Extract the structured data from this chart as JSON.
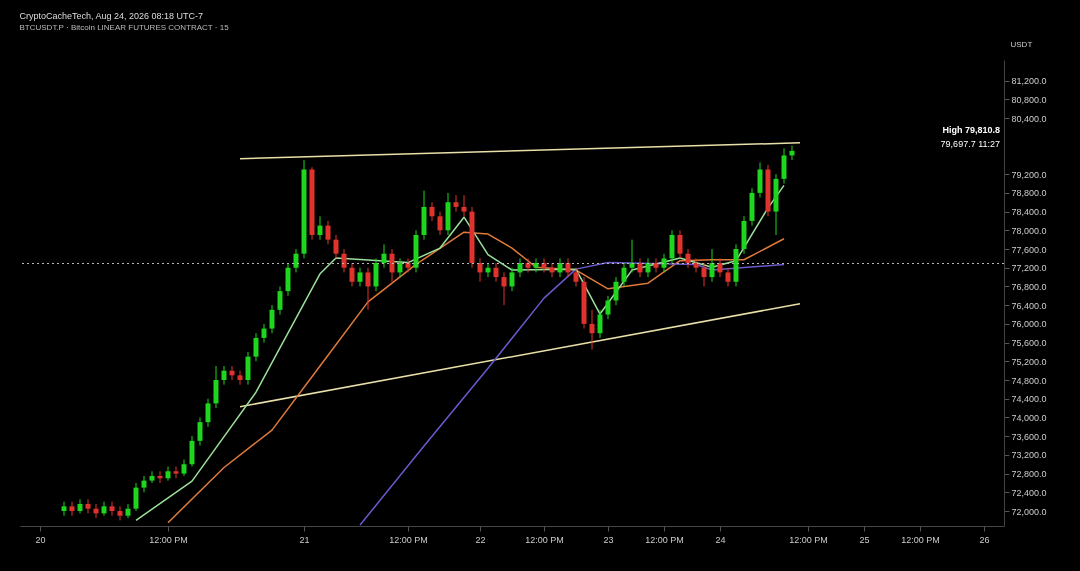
{
  "chart_data": {
    "type": "candlestick",
    "title": "CryptoCacheTech, Aug 24, 2026 08:18 UTC-7",
    "subtitle": "BTCUSDT.P · Bitcoin LINEAR FUTURES CONTRACT · 15",
    "ylabel": "USDT",
    "categories": [
      null,
      null,
      "20",
      null,
      null,
      null,
      null,
      null,
      null,
      null,
      null,
      null,
      null,
      null,
      null,
      null,
      null,
      null,
      "12:00 PM",
      null,
      null,
      null,
      null,
      null,
      null,
      null,
      null,
      null,
      null,
      null,
      null,
      null,
      null,
      null,
      null,
      "21",
      null,
      null,
      null,
      null,
      null,
      null,
      null,
      null,
      null,
      null,
      null,
      null,
      "12:00 PM",
      null,
      null,
      null,
      null,
      null,
      null,
      null,
      null,
      "22",
      null,
      null,
      null,
      null,
      null,
      null,
      null,
      "12:00 PM",
      null,
      null,
      null,
      null,
      null,
      null,
      null,
      "23",
      null,
      null,
      null,
      null,
      null,
      null,
      "12:00 PM",
      null,
      null,
      null,
      null,
      null,
      null,
      "24",
      null,
      null,
      null,
      null,
      null,
      null,
      null,
      null,
      null,
      null,
      "12:00 PM",
      null,
      null,
      null,
      null,
      null,
      null,
      "25",
      null,
      null,
      null,
      null,
      null,
      null,
      "12:00 PM",
      null,
      null,
      null,
      null,
      null,
      null,
      null,
      "26",
      null,
      null
    ],
    "ohlc": [
      null,
      null,
      null,
      null,
      null,
      [
        72000,
        72200,
        71900,
        72100
      ],
      [
        72100,
        72200,
        71900,
        72000
      ],
      [
        72000,
        72250,
        71950,
        72150
      ],
      [
        72150,
        72250,
        71950,
        72050
      ],
      [
        72050,
        72150,
        71850,
        71950
      ],
      [
        71950,
        72200,
        71900,
        72100
      ],
      [
        72100,
        72200,
        71900,
        72000
      ],
      [
        72000,
        72100,
        71800,
        71900
      ],
      [
        71900,
        72150,
        71850,
        72050
      ],
      [
        72050,
        72600,
        72000,
        72500
      ],
      [
        72500,
        72750,
        72400,
        72650
      ],
      [
        72650,
        72850,
        72600,
        72750
      ],
      [
        72750,
        72850,
        72600,
        72700
      ],
      [
        72700,
        72950,
        72650,
        72850
      ],
      [
        72850,
        72950,
        72700,
        72800
      ],
      [
        72800,
        73100,
        72750,
        73000
      ],
      [
        73000,
        73600,
        72950,
        73500
      ],
      [
        73500,
        74000,
        73400,
        73900
      ],
      [
        73900,
        74400,
        73800,
        74300
      ],
      [
        74300,
        75100,
        74200,
        74800
      ],
      [
        74800,
        75100,
        74700,
        75000
      ],
      [
        75000,
        75100,
        74800,
        74900
      ],
      [
        74900,
        75000,
        74700,
        74800
      ],
      [
        74800,
        75400,
        74700,
        75300
      ],
      [
        75300,
        75800,
        75200,
        75700
      ],
      [
        75700,
        76000,
        75600,
        75900
      ],
      [
        75900,
        76400,
        75800,
        76300
      ],
      [
        76300,
        76800,
        76200,
        76700
      ],
      [
        76700,
        77300,
        76600,
        77200
      ],
      [
        77200,
        77600,
        77100,
        77500
      ],
      [
        77500,
        79500,
        77400,
        79300
      ],
      [
        79300,
        79350,
        77800,
        77900
      ],
      [
        77900,
        78300,
        77800,
        78100
      ],
      [
        78100,
        78200,
        77700,
        77800
      ],
      [
        77800,
        77900,
        77400,
        77500
      ],
      [
        77500,
        77600,
        77100,
        77200
      ],
      [
        77200,
        77300,
        76800,
        76900
      ],
      [
        76900,
        77200,
        76800,
        77100
      ],
      [
        77100,
        77200,
        76300,
        76800
      ],
      [
        76800,
        77400,
        76700,
        77300
      ],
      [
        77300,
        77700,
        77200,
        77500
      ],
      [
        77500,
        77600,
        76900,
        77100
      ],
      [
        77100,
        77400,
        77000,
        77300
      ],
      [
        77300,
        77400,
        77100,
        77200
      ],
      [
        77200,
        78000,
        77100,
        77900
      ],
      [
        77900,
        78850,
        77800,
        78500
      ],
      [
        78500,
        78600,
        78200,
        78300
      ],
      [
        78300,
        78400,
        77900,
        78000
      ],
      [
        78000,
        78800,
        77900,
        78600
      ],
      [
        78600,
        78750,
        78400,
        78500
      ],
      [
        78500,
        78750,
        78300,
        78400
      ],
      [
        78400,
        78500,
        77200,
        77300
      ],
      [
        77300,
        77400,
        76900,
        77100
      ],
      [
        77100,
        77300,
        77000,
        77200
      ],
      [
        77200,
        77300,
        76900,
        77000
      ],
      [
        77000,
        77100,
        76400,
        76800
      ],
      [
        76800,
        77200,
        76700,
        77100
      ],
      [
        77100,
        77400,
        77000,
        77300
      ],
      [
        77300,
        77400,
        77100,
        77200
      ],
      [
        77200,
        77400,
        77100,
        77300
      ],
      [
        77300,
        77400,
        77100,
        77200
      ],
      [
        77200,
        77300,
        77000,
        77100
      ],
      [
        77100,
        77400,
        77000,
        77300
      ],
      [
        77300,
        77400,
        77000,
        77100
      ],
      [
        77100,
        77200,
        76800,
        76900
      ],
      [
        76900,
        77000,
        75900,
        76000
      ],
      [
        76000,
        76300,
        75450,
        75800
      ],
      [
        75800,
        76300,
        75700,
        76200
      ],
      [
        76200,
        76600,
        76100,
        76500
      ],
      [
        76500,
        77000,
        76400,
        76900
      ],
      [
        76900,
        77300,
        76800,
        77200
      ],
      [
        77200,
        77800,
        77100,
        77300
      ],
      [
        77300,
        77400,
        77000,
        77100
      ],
      [
        77100,
        77400,
        77000,
        77300
      ],
      [
        77300,
        77400,
        77100,
        77200
      ],
      [
        77200,
        77500,
        77100,
        77400
      ],
      [
        77400,
        78000,
        77300,
        77900
      ],
      [
        77900,
        78000,
        77400,
        77500
      ],
      [
        77500,
        77600,
        77200,
        77300
      ],
      [
        77300,
        77400,
        77100,
        77200
      ],
      [
        77200,
        77300,
        76800,
        77000
      ],
      [
        77000,
        77600,
        76900,
        77300
      ],
      [
        77300,
        77400,
        77000,
        77100
      ],
      [
        77100,
        77200,
        76800,
        76900
      ],
      [
        76900,
        77700,
        76800,
        77600
      ],
      [
        77600,
        78300,
        77500,
        78200
      ],
      [
        78200,
        78900,
        78100,
        78800
      ],
      [
        78800,
        79450,
        78700,
        79300
      ],
      [
        79300,
        79400,
        78300,
        78400
      ],
      [
        78400,
        79200,
        77900,
        79100
      ],
      [
        79100,
        79750,
        79000,
        79600
      ],
      [
        79600,
        79810.8,
        79500,
        79697.7
      ],
      null,
      null,
      null,
      null,
      null,
      null,
      null,
      null,
      null,
      null,
      null,
      null,
      null,
      null,
      null,
      null,
      null,
      null,
      null,
      null,
      null,
      null,
      null,
      null,
      null,
      null
    ],
    "series": [
      {
        "type": "line",
        "color": "#e8e0a8",
        "values": [
          null,
          null,
          null,
          null,
          null,
          null,
          null,
          null,
          null,
          null,
          null,
          null,
          null,
          null,
          null,
          null,
          null,
          null,
          null,
          null,
          null,
          null,
          null,
          null,
          null,
          null,
          null,
          79530,
          null,
          null,
          null,
          null,
          null,
          null,
          null,
          null,
          null,
          null,
          null,
          null,
          null,
          null,
          null,
          null,
          null,
          null,
          null,
          null,
          null,
          null,
          null,
          null,
          null,
          null,
          null,
          null,
          null,
          null,
          null,
          null,
          null,
          null,
          null,
          null,
          null,
          null,
          null,
          null,
          null,
          null,
          null,
          null,
          null,
          null,
          null,
          null,
          null,
          null,
          null,
          null,
          null,
          null,
          null,
          null,
          null,
          null,
          null,
          null,
          null,
          null,
          null,
          null,
          null,
          null,
          null,
          null,
          null,
          79870,
          null,
          null,
          null,
          null,
          null,
          null,
          null,
          null,
          null,
          null,
          null,
          null,
          null,
          null,
          null,
          null,
          null,
          null,
          null,
          null,
          null,
          null,
          null,
          null,
          null
        ]
      },
      {
        "type": "line",
        "color": "#e8e0a8",
        "values": [
          null,
          null,
          null,
          null,
          null,
          null,
          null,
          null,
          null,
          null,
          null,
          null,
          null,
          null,
          null,
          null,
          null,
          null,
          null,
          null,
          null,
          null,
          null,
          null,
          null,
          null,
          null,
          74230,
          null,
          null,
          null,
          null,
          null,
          null,
          null,
          null,
          null,
          null,
          null,
          null,
          null,
          null,
          null,
          null,
          null,
          null,
          null,
          null,
          null,
          null,
          null,
          null,
          null,
          null,
          null,
          null,
          null,
          null,
          null,
          null,
          null,
          null,
          null,
          null,
          null,
          null,
          null,
          null,
          null,
          null,
          null,
          null,
          null,
          null,
          null,
          null,
          null,
          null,
          null,
          null,
          null,
          null,
          null,
          null,
          null,
          null,
          null,
          null,
          null,
          null,
          null,
          null,
          null,
          null,
          null,
          null,
          null,
          76430,
          null,
          null,
          null,
          null,
          null,
          null,
          null,
          null,
          null,
          null,
          null,
          null,
          null,
          null,
          null,
          null,
          null,
          null,
          null,
          null,
          null,
          null,
          null,
          null,
          null
        ]
      },
      {
        "type": "line",
        "color": "#e07a3a",
        "values": [
          null,
          null,
          null,
          null,
          null,
          null,
          null,
          null,
          null,
          null,
          null,
          null,
          null,
          null,
          null,
          null,
          null,
          null,
          71750,
          null,
          null,
          null,
          null,
          null,
          null,
          72930,
          null,
          null,
          null,
          null,
          null,
          73730,
          null,
          null,
          null,
          null,
          null,
          75100,
          null,
          null,
          null,
          null,
          null,
          76470,
          null,
          null,
          null,
          null,
          null,
          77270,
          null,
          null,
          null,
          null,
          null,
          77960,
          null,
          null,
          77920,
          null,
          null,
          77620,
          null,
          null,
          77210,
          null,
          null,
          null,
          null,
          77150,
          null,
          null,
          null,
          76750,
          null,
          null,
          null,
          null,
          76870,
          null,
          null,
          null,
          77350,
          null,
          null,
          null,
          77370,
          null,
          null,
          null,
          77370,
          null,
          null,
          null,
          null,
          77820,
          null,
          null,
          null,
          null,
          null,
          null,
          null,
          null,
          null,
          null,
          null,
          null,
          null,
          null,
          null,
          null,
          null,
          null,
          null,
          null,
          null,
          null,
          null,
          null,
          null,
          null,
          null
        ]
      },
      {
        "type": "line",
        "color": "#6a5acd",
        "values": [
          null,
          null,
          null,
          null,
          null,
          null,
          null,
          null,
          null,
          null,
          null,
          null,
          null,
          null,
          null,
          null,
          null,
          null,
          null,
          null,
          null,
          null,
          null,
          null,
          null,
          null,
          null,
          null,
          null,
          null,
          null,
          null,
          null,
          null,
          null,
          null,
          null,
          null,
          null,
          null,
          null,
          null,
          71700,
          null,
          null,
          null,
          null,
          null,
          null,
          null,
          73390,
          null,
          null,
          null,
          null,
          null,
          null,
          null,
          75050,
          null,
          null,
          null,
          null,
          null,
          null,
          76550,
          null,
          null,
          null,
          77170,
          null,
          null,
          null,
          77310,
          null,
          null,
          null,
          null,
          null,
          null,
          null,
          null,
          null,
          null,
          77270,
          null,
          77150,
          null,
          null,
          null,
          null,
          null,
          null,
          null,
          null,
          77270,
          null,
          null,
          null,
          null,
          null,
          null,
          null,
          null,
          null,
          null,
          null,
          null,
          null,
          null,
          null,
          null,
          null,
          null,
          null,
          null,
          null,
          null,
          null,
          null,
          null,
          null,
          null
        ]
      },
      {
        "type": "line",
        "color": "#9be09b",
        "values": [
          null,
          null,
          null,
          null,
          null,
          null,
          null,
          null,
          null,
          null,
          null,
          null,
          null,
          null,
          71800,
          null,
          null,
          null,
          null,
          null,
          null,
          72640,
          null,
          null,
          null,
          null,
          null,
          null,
          null,
          74540,
          null,
          null,
          null,
          null,
          null,
          null,
          null,
          77070,
          null,
          77410,
          null,
          null,
          null,
          null,
          null,
          null,
          null,
          null,
          77310,
          null,
          null,
          null,
          77620,
          null,
          null,
          78280,
          null,
          null,
          77480,
          null,
          null,
          77150,
          null,
          null,
          null,
          null,
          null,
          null,
          null,
          77170,
          null,
          null,
          76210,
          null,
          null,
          null,
          77150,
          null,
          null,
          null,
          null,
          null,
          77410,
          null,
          null,
          null,
          77210,
          null,
          null,
          77350,
          null,
          null,
          null,
          78480,
          null,
          78960,
          null,
          null,
          null,
          null,
          null,
          null,
          null,
          null,
          null,
          null,
          null,
          null,
          null,
          null,
          null,
          null,
          null,
          null,
          null,
          null,
          null,
          null,
          null,
          null,
          null,
          null,
          null
        ]
      }
    ],
    "ylim": [
      71680,
      81640
    ],
    "yticks": [
      {
        "value": 72000,
        "label": "72,000.0"
      },
      {
        "value": 72400,
        "label": "72,400.0"
      },
      {
        "value": 72800,
        "label": "72,800.0"
      },
      {
        "value": 73200,
        "label": "73,200.0"
      },
      {
        "value": 73600,
        "label": "73,600.0"
      },
      {
        "value": 74000,
        "label": "74,000.0"
      },
      {
        "value": 74400,
        "label": "74,400.0"
      },
      {
        "value": 74800,
        "label": "74,800.0"
      },
      {
        "value": 75200,
        "label": "75,200.0"
      },
      {
        "value": 75600,
        "label": "75,600.0"
      },
      {
        "value": 76000,
        "label": "76,000.0"
      },
      {
        "value": 76400,
        "label": "76,400.0"
      },
      {
        "value": 76800,
        "label": "76,800.0"
      },
      {
        "value": 77200,
        "label": "77,200.0"
      },
      {
        "value": 77600,
        "label": "77,600.0"
      },
      {
        "value": 78000,
        "label": "78,000.0"
      },
      {
        "value": 78400,
        "label": "78,400.0"
      },
      {
        "value": 78800,
        "label": "78,800.0"
      },
      {
        "value": 79200,
        "label": "79,200.0"
      },
      {
        "value": 80400,
        "label": "80,400.0"
      },
      {
        "value": 80800,
        "label": "80,800.0"
      },
      {
        "value": 81200,
        "label": "81,200.0"
      }
    ],
    "ref_lines": [
      {
        "axis": "y",
        "value": 77290,
        "line_style": "dotted",
        "color": "#bbbbbb"
      }
    ],
    "annotations": [
      "High 79,810.8",
      "79,697.7 11:27"
    ]
  }
}
